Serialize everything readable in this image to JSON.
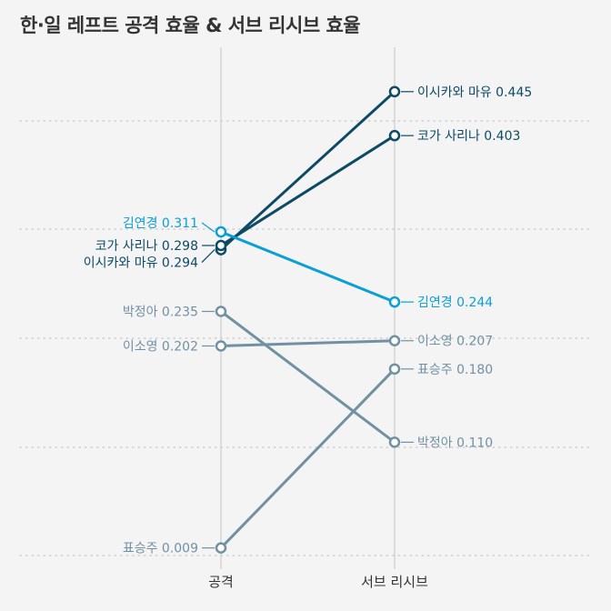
{
  "chart_data": {
    "type": "line",
    "title": "한·일 레프트 공격 효율 & 서브 리시브 효율",
    "categories": [
      "공격",
      "서브 리시브"
    ],
    "ylim": [
      -0.02,
      0.5
    ],
    "grid": true,
    "series": [
      {
        "name": "이시카와 마유",
        "values": [
          0.294,
          0.445
        ],
        "color": "#0d4a63"
      },
      {
        "name": "코가 사리나",
        "values": [
          0.298,
          0.403
        ],
        "color": "#0d4a63"
      },
      {
        "name": "김연경",
        "values": [
          0.311,
          0.244
        ],
        "color": "#0aa0d4"
      },
      {
        "name": "박정아",
        "values": [
          0.235,
          0.11
        ],
        "color": "#7191a3"
      },
      {
        "name": "이소영",
        "values": [
          0.202,
          0.207
        ],
        "color": "#7191a3"
      },
      {
        "name": "표승주",
        "values": [
          0.009,
          0.18
        ],
        "color": "#7191a3"
      }
    ]
  }
}
